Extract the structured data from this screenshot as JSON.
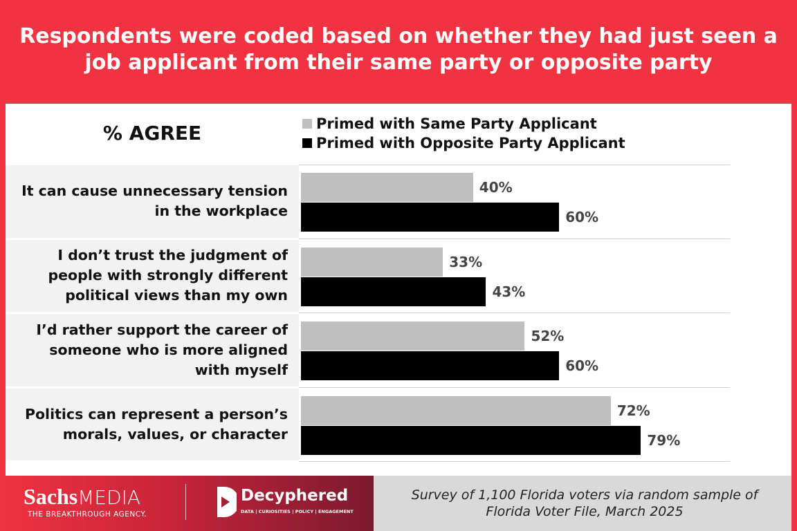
{
  "chart_data": {
    "type": "hbar",
    "title": "Respondents were coded based on whether they had just seen a job applicant from their same party or opposite party",
    "subtitle": "% AGREE",
    "categories": [
      "It can cause unnecessary tension in the workplace",
      "I don’t trust the judgment of people with strongly different political views than my own",
      "I’d rather support the career of someone who is more aligned with myself",
      "Politics can represent a person’s morals, values, or character"
    ],
    "series": [
      {
        "name": "Primed with Same Party Applicant",
        "color": "#bfbfbf",
        "values": [
          40,
          33,
          52,
          72
        ],
        "value_labels": [
          "40%",
          "33%",
          "52%",
          "72%"
        ]
      },
      {
        "name": "Primed with Opposite Party Applicant",
        "color": "#000000",
        "values": [
          60,
          43,
          60,
          79
        ],
        "value_labels": [
          "60%",
          "43%",
          "60%",
          "79%"
        ]
      }
    ],
    "xlim": [
      0,
      100
    ]
  },
  "footer": {
    "brand_bold": "Sachs",
    "brand_light": "MEDIA",
    "brand_tagline": "THE BREAKTHROUGH AGENCY.",
    "partner": "Decyphered",
    "partner_tagline": "DATA | CURIOSITIES | POLICY | ENGAGEMENT",
    "source": "Survey of 1,100 Florida voters via random sample of Florida Voter File, March 2025"
  }
}
